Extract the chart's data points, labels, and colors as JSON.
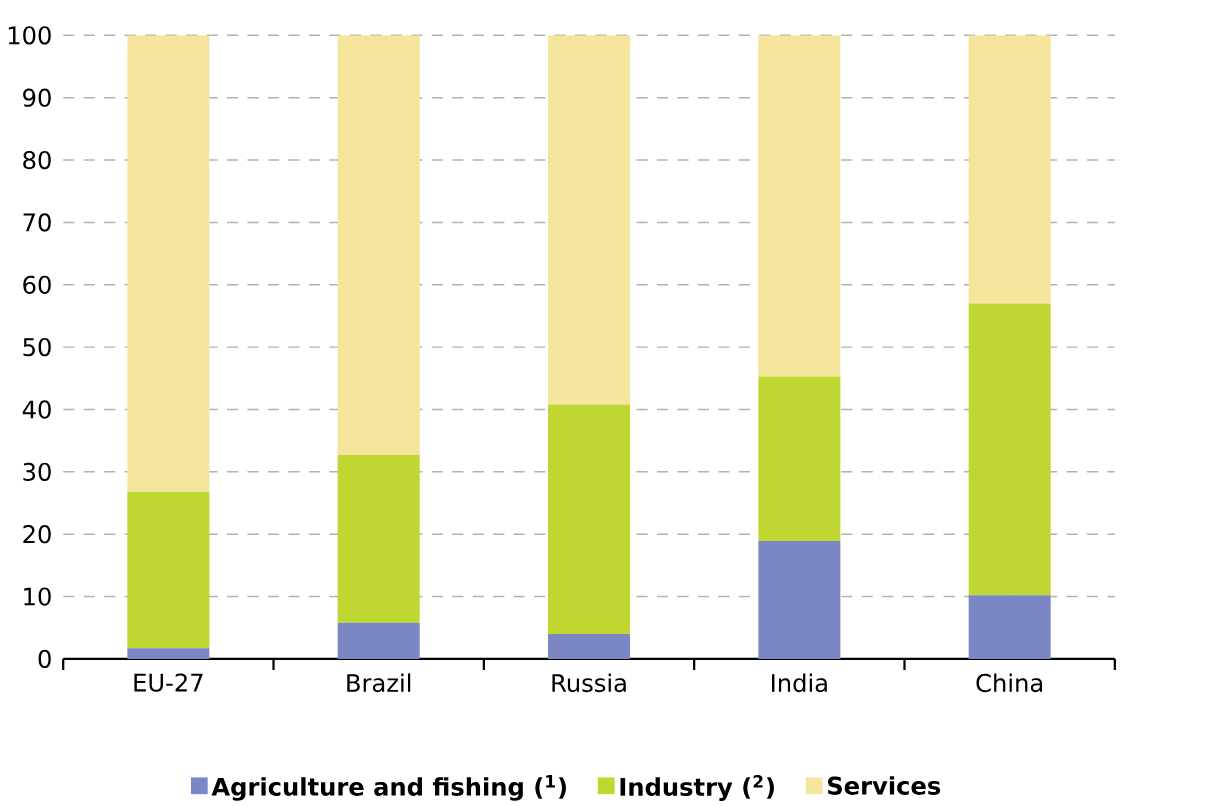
{
  "chart_data": {
    "type": "bar",
    "stacked": true,
    "categories": [
      "EU-27",
      "Brazil",
      "Russia",
      "India",
      "China"
    ],
    "series": [
      {
        "name": "Agriculture and fishing ($^{1}$)",
        "color": "#7b86c4",
        "values": [
          1.7,
          5.8,
          4.0,
          18.9,
          10.2
        ]
      },
      {
        "name": "Industry ($^{2}$)",
        "color": "#bfd730",
        "values": [
          25.1,
          26.9,
          36.8,
          26.4,
          46.8
        ]
      },
      {
        "name": "Services",
        "color": "#f4e49c",
        "values": [
          73.2,
          67.3,
          59.2,
          54.7,
          43.0
        ]
      }
    ],
    "ylim": [
      0,
      100
    ],
    "yticks": [
      0,
      10,
      20,
      30,
      40,
      50,
      60,
      70,
      80,
      90,
      100
    ],
    "grid": "y",
    "legend": "bottom"
  }
}
